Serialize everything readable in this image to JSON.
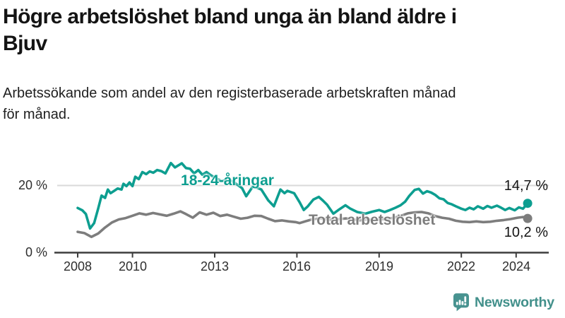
{
  "header": {
    "title": "Högre arbetslöshet bland unga än bland äldre i\nBjuv",
    "subtitle": "Arbetssökande som andel av den registerbaserade arbetskraften månad\nför månad."
  },
  "chart_data": {
    "type": "line",
    "title": "Högre arbetslöshet bland unga än bland äldre i Bjuv",
    "xlabel": "",
    "ylabel": "Arbetssökande som andel av den registerbaserade arbetskraften (%)",
    "x_axis": {
      "range": [
        2007.7,
        2025.2
      ],
      "ticks": [
        2008,
        2010,
        2013,
        2016,
        2019,
        2022,
        2024
      ],
      "tick_labels": [
        "2008",
        "2010",
        "2013",
        "2016",
        "2019",
        "2022",
        "2024"
      ]
    },
    "y_axis": {
      "range": [
        0,
        28
      ],
      "ticks": [
        20,
        0
      ],
      "tick_labels": [
        "20 %",
        "0 %"
      ],
      "gridline_at": 20
    },
    "legend_position": "inline-labels-on-lines",
    "grid": "single light horizontal gridline at 20 %",
    "series": [
      {
        "name": "18-24-åringar",
        "color": "#0d9e90",
        "end_label": "14,7 %",
        "end_value": 14.7,
        "x": [
          2008.0,
          2008.17,
          2008.3,
          2008.45,
          2008.6,
          2008.75,
          2008.87,
          2009.0,
          2009.1,
          2009.2,
          2009.33,
          2009.46,
          2009.6,
          2009.67,
          2009.78,
          2009.89,
          2010.0,
          2010.1,
          2010.23,
          2010.36,
          2010.5,
          2010.63,
          2010.76,
          2010.9,
          2011.05,
          2011.2,
          2011.4,
          2011.55,
          2011.8,
          2011.95,
          2012.1,
          2012.25,
          2012.4,
          2012.55,
          2012.7,
          2012.85,
          2013.0,
          2013.25,
          2013.5,
          2013.75,
          2014.0,
          2014.15,
          2014.4,
          2014.7,
          2014.95,
          2015.16,
          2015.4,
          2015.55,
          2015.65,
          2015.9,
          2016.1,
          2016.25,
          2016.4,
          2016.6,
          2016.8,
          2016.95,
          2017.1,
          2017.33,
          2017.55,
          2017.77,
          2017.95,
          2018.2,
          2018.5,
          2018.74,
          2019.0,
          2019.2,
          2019.4,
          2019.6,
          2019.78,
          2019.95,
          2020.1,
          2020.3,
          2020.45,
          2020.6,
          2020.75,
          2020.9,
          2021.05,
          2021.2,
          2021.35,
          2021.5,
          2021.65,
          2021.8,
          2022.0,
          2022.15,
          2022.3,
          2022.45,
          2022.6,
          2022.8,
          2022.95,
          2023.1,
          2023.3,
          2023.45,
          2023.6,
          2023.75,
          2023.95,
          2024.1,
          2024.25,
          2024.42
        ],
        "values": [
          13.3,
          12.6,
          11.5,
          7.2,
          8.8,
          13.2,
          17.0,
          16.3,
          18.8,
          17.7,
          18.4,
          19.1,
          18.8,
          20.5,
          19.8,
          20.9,
          19.8,
          22.6,
          21.9,
          24.0,
          23.4,
          24.2,
          23.8,
          24.6,
          24.3,
          23.6,
          26.7,
          25.4,
          26.6,
          25.2,
          25.0,
          23.6,
          24.6,
          23.2,
          24.0,
          23.1,
          22.4,
          21.3,
          21.9,
          20.7,
          19.2,
          16.8,
          19.8,
          18.8,
          15.6,
          13.8,
          18.8,
          17.7,
          18.4,
          17.7,
          15.0,
          12.7,
          13.8,
          15.8,
          16.6,
          15.5,
          14.3,
          11.6,
          12.9,
          14.1,
          13.1,
          12.1,
          11.6,
          12.2,
          12.7,
          12.1,
          12.7,
          13.4,
          14.1,
          15.2,
          16.9,
          18.7,
          19.0,
          17.6,
          18.3,
          17.9,
          17.2,
          16.2,
          15.9,
          14.8,
          14.4,
          13.8,
          13.1,
          12.7,
          13.4,
          12.9,
          13.8,
          13.1,
          13.9,
          13.4,
          14.0,
          13.4,
          12.7,
          13.3,
          12.6,
          13.5,
          13.1,
          14.7
        ]
      },
      {
        "name": "Total arbetslöshet",
        "color": "#7d7d7d",
        "end_label": "10,2 %",
        "end_value": 10.2,
        "x": [
          2008.0,
          2008.25,
          2008.5,
          2008.75,
          2009.0,
          2009.25,
          2009.5,
          2009.75,
          2010.0,
          2010.25,
          2010.5,
          2010.75,
          2011.0,
          2011.25,
          2011.5,
          2011.75,
          2011.95,
          2012.2,
          2012.45,
          2012.7,
          2012.95,
          2013.2,
          2013.45,
          2013.7,
          2013.95,
          2014.2,
          2014.45,
          2014.7,
          2014.95,
          2015.2,
          2015.45,
          2015.7,
          2015.95,
          2016.1,
          2016.3,
          2016.55,
          2016.8,
          2017.05,
          2017.3,
          2017.55,
          2017.8,
          2018.05,
          2018.3,
          2018.55,
          2018.8,
          2019.05,
          2019.3,
          2019.55,
          2019.8,
          2020.05,
          2020.3,
          2020.55,
          2020.8,
          2021.05,
          2021.3,
          2021.55,
          2021.8,
          2022.05,
          2022.3,
          2022.55,
          2022.8,
          2023.05,
          2023.3,
          2023.55,
          2023.8,
          2024.05,
          2024.25,
          2024.42
        ],
        "values": [
          6.2,
          5.8,
          4.7,
          5.7,
          7.5,
          9.0,
          9.9,
          10.3,
          11.0,
          11.7,
          11.3,
          11.8,
          11.4,
          11.0,
          11.6,
          12.3,
          11.5,
          10.4,
          12.0,
          11.3,
          11.9,
          10.9,
          11.3,
          10.7,
          10.1,
          10.4,
          11.0,
          10.9,
          10.1,
          9.4,
          9.6,
          9.3,
          9.1,
          8.8,
          9.3,
          9.9,
          10.2,
          10.0,
          9.7,
          10.0,
          10.2,
          9.9,
          9.6,
          9.9,
          9.7,
          9.9,
          10.1,
          10.4,
          11.0,
          11.7,
          12.0,
          12.1,
          11.7,
          10.9,
          10.4,
          10.1,
          9.5,
          9.2,
          9.1,
          9.3,
          9.1,
          9.2,
          9.5,
          9.7,
          10.0,
          10.4,
          10.6,
          10.2
        ]
      }
    ]
  },
  "branding": {
    "logo_text": "Newsworthy",
    "logo_color": "#42908b",
    "icon": "newsworthy-bar-chart-speech-bubble"
  }
}
